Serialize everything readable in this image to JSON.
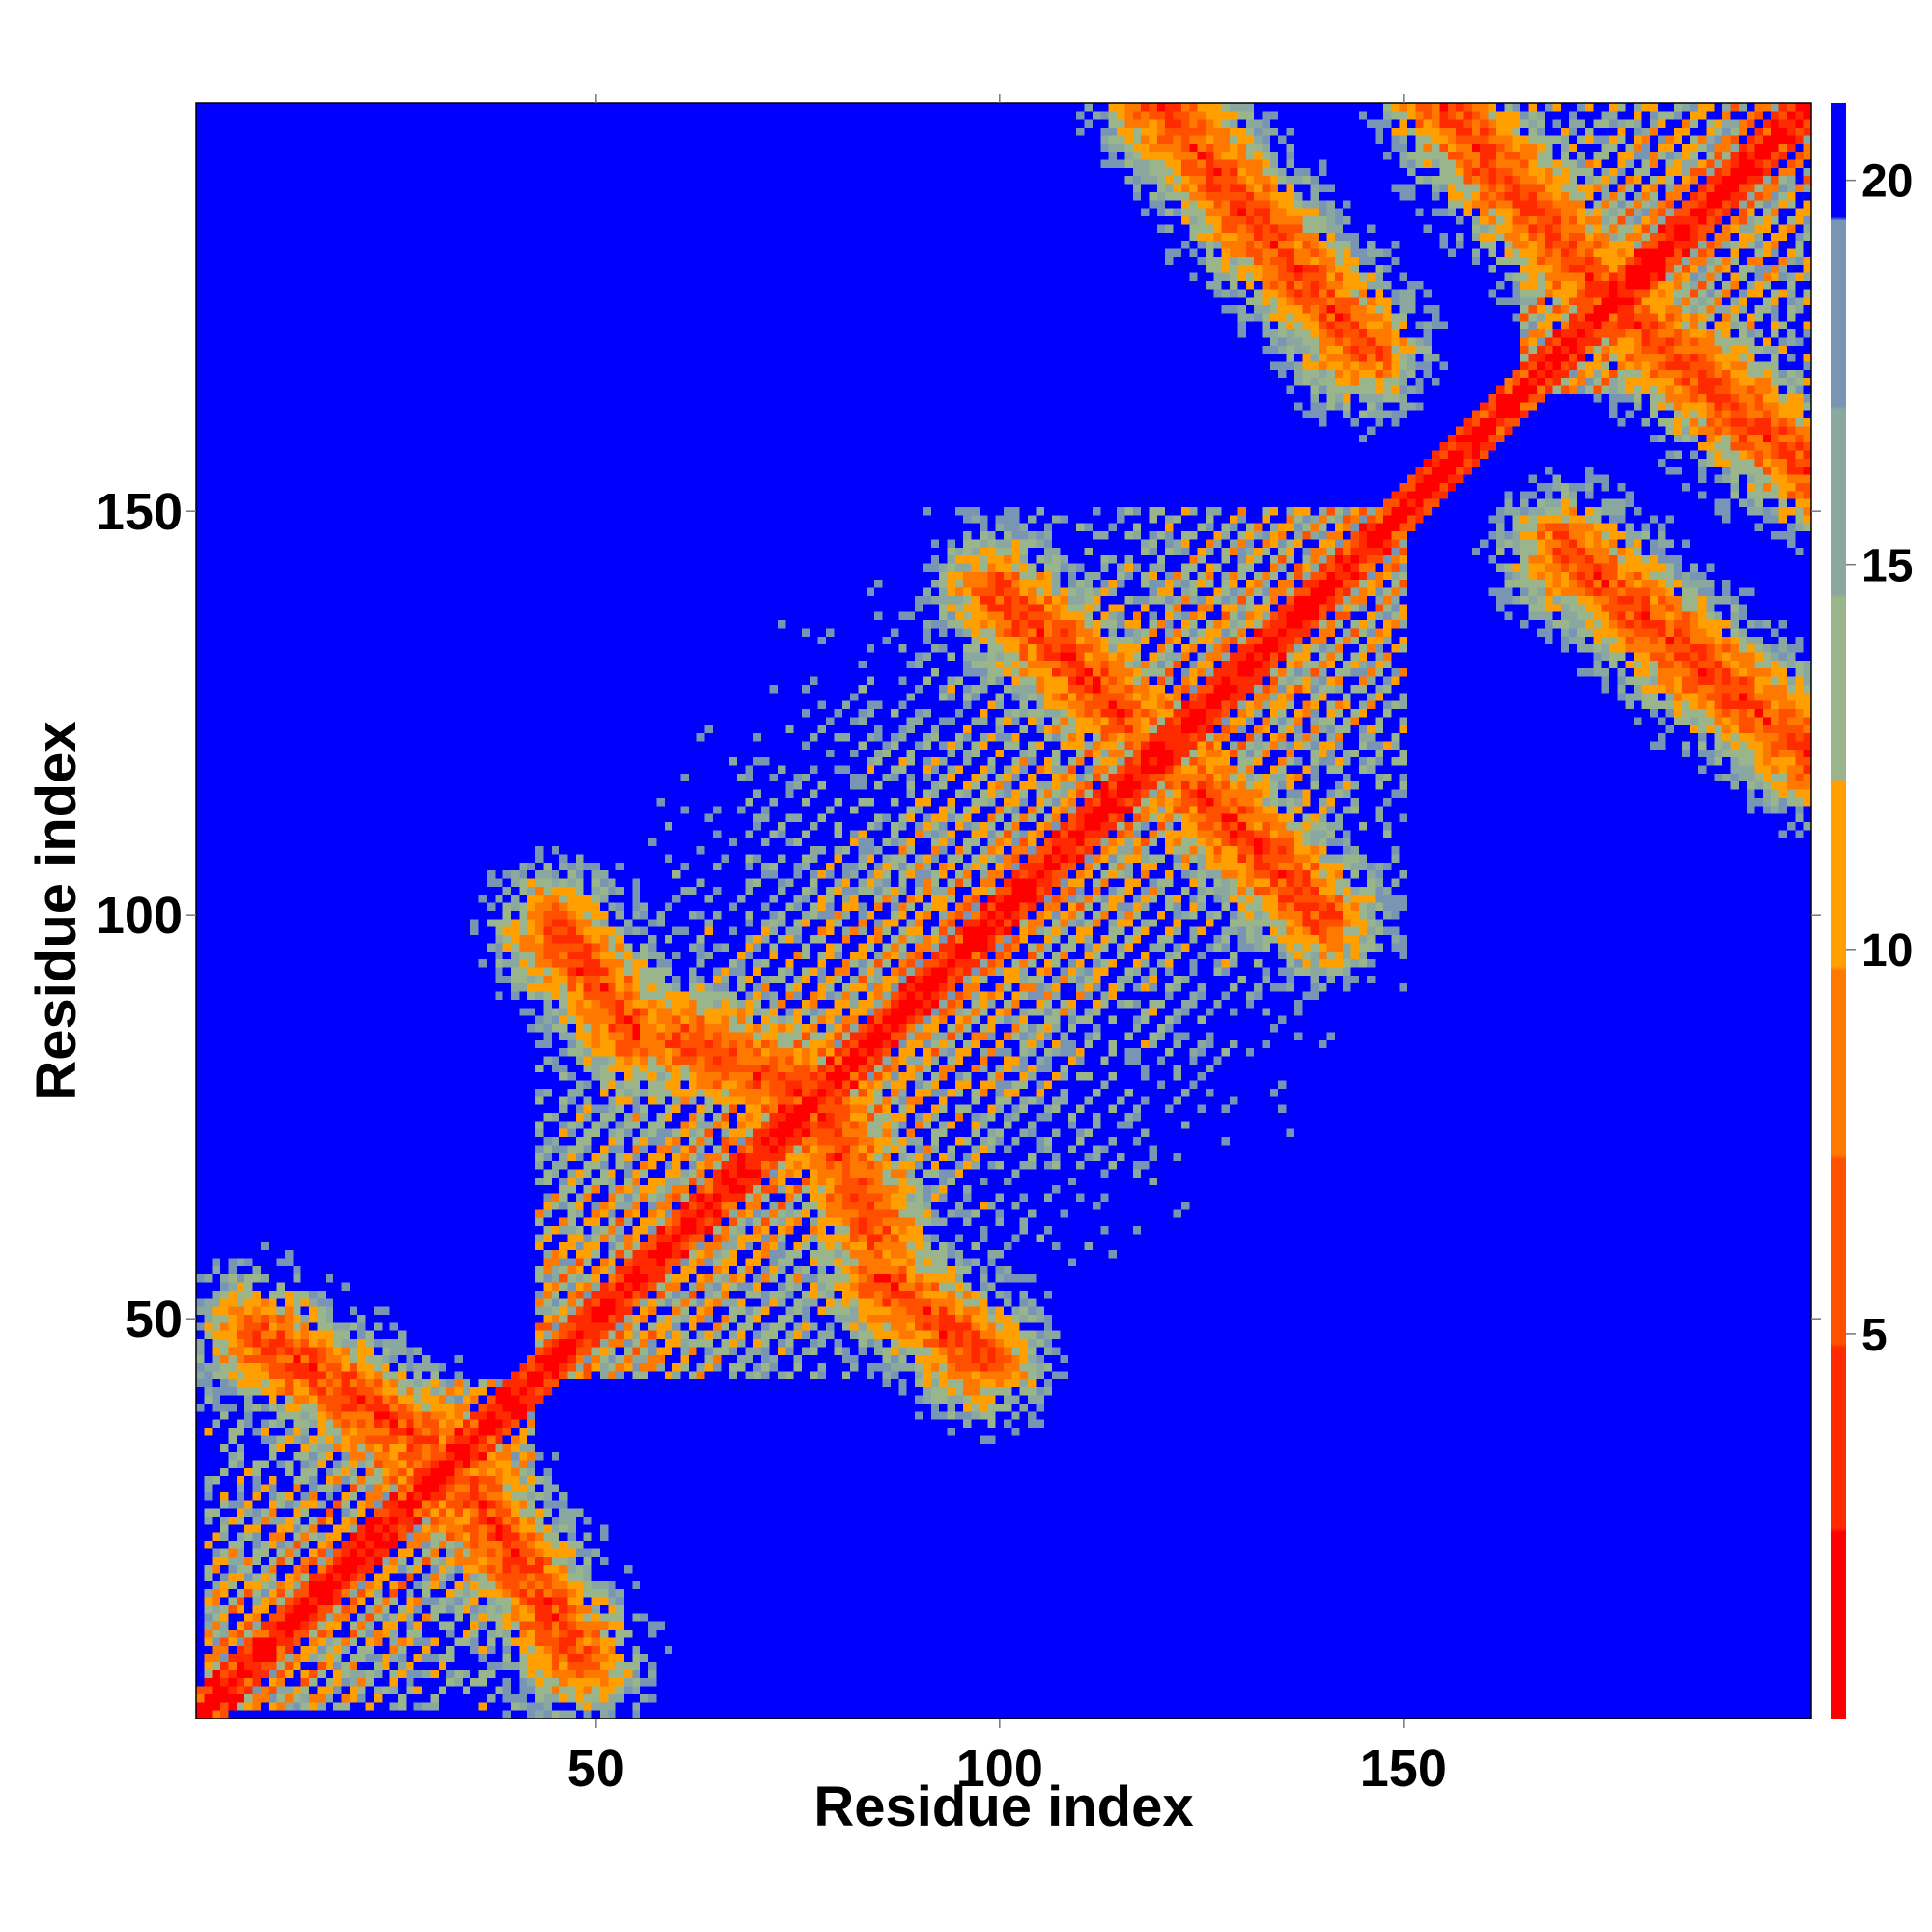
{
  "chart_data": {
    "type": "heatmap",
    "title": "",
    "xlabel": "Residue index",
    "ylabel": "Residue index",
    "xlim": [
      1,
      200
    ],
    "ylim": [
      1,
      200
    ],
    "x_ticks": [
      "50",
      "100",
      "150"
    ],
    "y_ticks": [
      "50",
      "100",
      "150"
    ],
    "grid": false,
    "legend": "none",
    "colorbar": {
      "position": "right",
      "range": [
        0,
        21
      ],
      "ticks": [
        "5",
        "10",
        "15",
        "20"
      ],
      "colors": [
        "#ff0000",
        "#ff2a00",
        "#ff5000",
        "#ff7800",
        "#ffa000",
        "#9ab58c",
        "#8aa8a0",
        "#7896b4",
        "#0000ff"
      ]
    },
    "matrix_description": {
      "size": 200,
      "helix_blocks": [
        [
          2,
          42
        ],
        [
          43,
          150
        ],
        [
          165,
          200
        ]
      ],
      "contact_bands": [
        {
          "from": [
            8,
            28
          ],
          "to": [
            35,
            48
          ],
          "orientation": "anti"
        },
        {
          "from": [
            45,
            55
          ],
          "to": [
            85,
            98
          ],
          "orientation": "anti"
        },
        {
          "from": [
            60,
            95
          ],
          "to": [
            70,
            85
          ],
          "orientation": "anti"
        },
        {
          "from": [
            100,
            115
          ],
          "to": [
            125,
            140
          ],
          "orientation": "anti"
        },
        {
          "from": [
            155,
            190
          ],
          "to": [
            160,
            200
          ],
          "orientation": "anti"
        },
        {
          "from": [
            120,
            145
          ],
          "to": [
            170,
            200
          ],
          "orientation": "anti"
        }
      ]
    }
  }
}
